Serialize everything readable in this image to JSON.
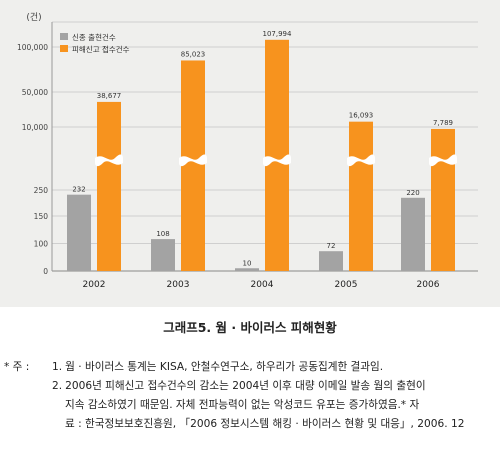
{
  "chart_data": {
    "type": "bar",
    "unit_label": "(건)",
    "categories": [
      "2002",
      "2003",
      "2004",
      "2005",
      "2006"
    ],
    "y_ticks": [
      "0",
      "100",
      "150",
      "250",
      "10,000",
      "50,000",
      "100,000"
    ],
    "axis_break": "between 250 and 10,000",
    "series": [
      {
        "name": "신종 출현건수",
        "color": "#a3a3a3",
        "values": [
          232,
          108,
          10,
          72,
          220
        ],
        "labels": [
          "232",
          "108",
          "10",
          "72",
          "220"
        ]
      },
      {
        "name": "피해신고 접수건수",
        "color": "#f7931e",
        "values": [
          38677,
          85023,
          107994,
          16093,
          7789
        ],
        "labels": [
          "38,677",
          "85,023",
          "107,994",
          "16,093",
          "7,789"
        ]
      }
    ],
    "legend_position": "top-left"
  },
  "caption": "그래프5. 웜 · 바이러스 피해현황",
  "notes": {
    "prefix": "* 주 :",
    "item1_num": "1.",
    "item1_text": "웜 · 바이러스 통계는 KISA, 안철수연구소, 하우리가 공동집계한 결과임.",
    "item2_num": "2.",
    "item2_line1": "2006년 피해신고 접수건수의 감소는 2004년 이후 대량 이메일 발송 웜의 출현이",
    "item2_line2": "지속 감소하였기 때문임. 자체 전파능력이 없는 악성코드 유포는 증가하였음.* 자",
    "item2_line3": "료 : 한국정보보호진흥원, 「2006 정보시스템 해킹 · 바이러스 현황 및 대응」, 2006. 12"
  }
}
